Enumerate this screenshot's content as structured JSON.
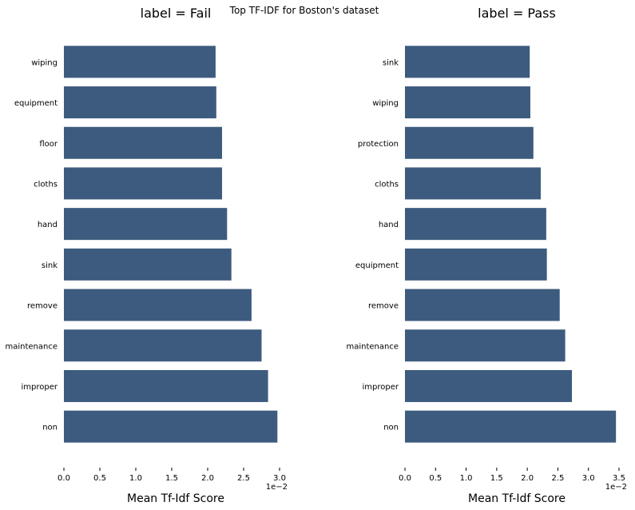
{
  "chart_data": {
    "type": "bar",
    "orientation": "horizontal",
    "title": "Top TF-IDF for Boston's dataset",
    "bar_color": "#3d5b7e",
    "panels": [
      {
        "title": "label = Fail",
        "xlabel": "Mean Tf-Idf Score",
        "offset_text": "1e−2",
        "xlim": [
          0,
          3.0
        ],
        "xticks": [
          "0.0",
          "0.5",
          "1.0",
          "1.5",
          "2.0",
          "2.5",
          "3.0"
        ],
        "categories": [
          "wiping",
          "equipment",
          "floor",
          "cloths",
          "hand",
          "sink",
          "remove",
          "maintenance",
          "improper",
          "non"
        ],
        "values": [
          2.11,
          2.12,
          2.2,
          2.2,
          2.27,
          2.33,
          2.61,
          2.75,
          2.84,
          2.97
        ]
      },
      {
        "title": "label = Pass",
        "xlabel": "Mean Tf-Idf Score",
        "offset_text": "1e−2",
        "xlim": [
          0,
          3.5
        ],
        "xticks": [
          "0.0",
          "0.5",
          "1.0",
          "1.5",
          "2.0",
          "2.5",
          "3.0",
          "3.5"
        ],
        "categories": [
          "sink",
          "wiping",
          "protection",
          "cloths",
          "hand",
          "equipment",
          "remove",
          "maintenance",
          "improper",
          "non"
        ],
        "values": [
          2.04,
          2.05,
          2.1,
          2.22,
          2.31,
          2.32,
          2.53,
          2.62,
          2.73,
          3.45
        ]
      }
    ]
  }
}
